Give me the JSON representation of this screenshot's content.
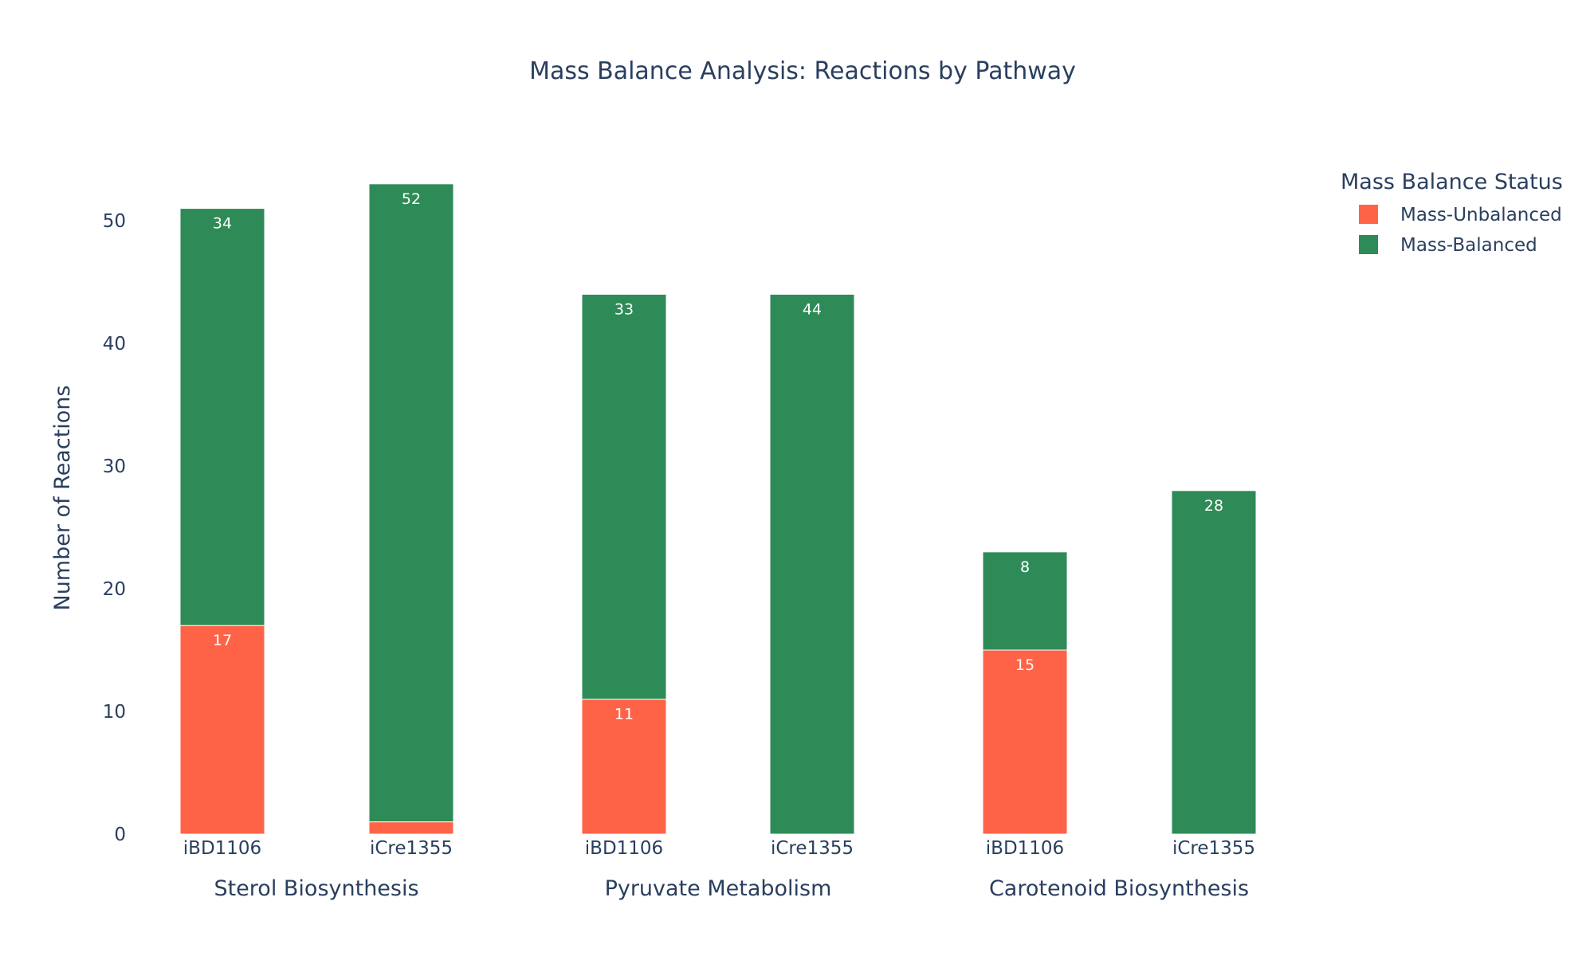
{
  "chart_data": {
    "type": "bar",
    "barmode": "stack",
    "title": "Mass Balance Analysis: Reactions by Pathway",
    "ylabel": "Number of Reactions",
    "ylim": [
      0,
      55
    ],
    "yticks": [
      "0",
      "10",
      "20",
      "30",
      "40",
      "50"
    ],
    "groups": [
      "Sterol Biosynthesis",
      "Pyruvate Metabolism",
      "Carotenoid Biosynthesis"
    ],
    "categories": [
      "iBD1106",
      "iCre1355",
      "iBD1106",
      "iCre1355",
      "iBD1106",
      "iCre1355"
    ],
    "group_index": [
      0,
      0,
      1,
      1,
      2,
      2
    ],
    "legend": {
      "title": "Mass Balance Status",
      "position": "top-right"
    },
    "series": [
      {
        "name": "Mass-Unbalanced",
        "color": "#FF6347",
        "values": [
          17,
          1,
          11,
          0,
          15,
          0
        ],
        "labels": [
          "17",
          "",
          "11",
          "",
          "15",
          ""
        ]
      },
      {
        "name": "Mass-Balanced",
        "color": "#2E8B57",
        "values": [
          34,
          52,
          33,
          44,
          8,
          28
        ],
        "labels": [
          "34",
          "52",
          "33",
          "44",
          "8",
          "28"
        ]
      }
    ],
    "grid": false
  }
}
